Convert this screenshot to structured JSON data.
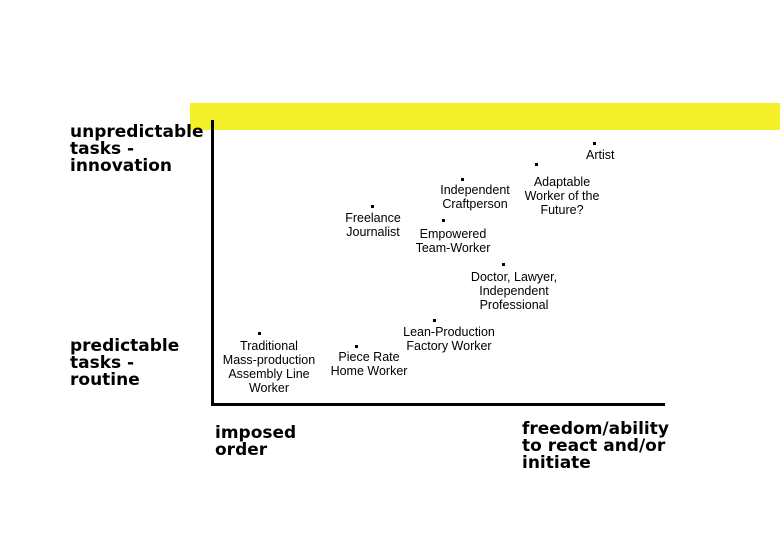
{
  "axes": {
    "y_top": "unpredictable\ntasks -\ninnovation",
    "y_bottom": "predictable\ntasks -\nroutine",
    "x_left": "imposed\norder",
    "x_right": "freedom/ability\nto react and/or\ninitiate"
  },
  "items": {
    "artist": "Artist",
    "adaptable_worker": "Adaptable\nWorker of the\nFuture?",
    "independent_craftperson": "Independent\nCraftperson",
    "freelance_journalist": "Freelance\nJournalist",
    "empowered_team_worker": "Empowered\nTeam-Worker",
    "doctor_lawyer": "Doctor, Lawyer,\nIndependent\nProfessional",
    "lean_production": "Lean-Production\nFactory Worker",
    "traditional_mass_production": "Traditional\nMass-production\nAssembly Line\nWorker",
    "piece_rate": "Piece Rate\nHome Worker"
  },
  "colors": {
    "highlight": "#f3f02a",
    "axis": "#000000"
  }
}
